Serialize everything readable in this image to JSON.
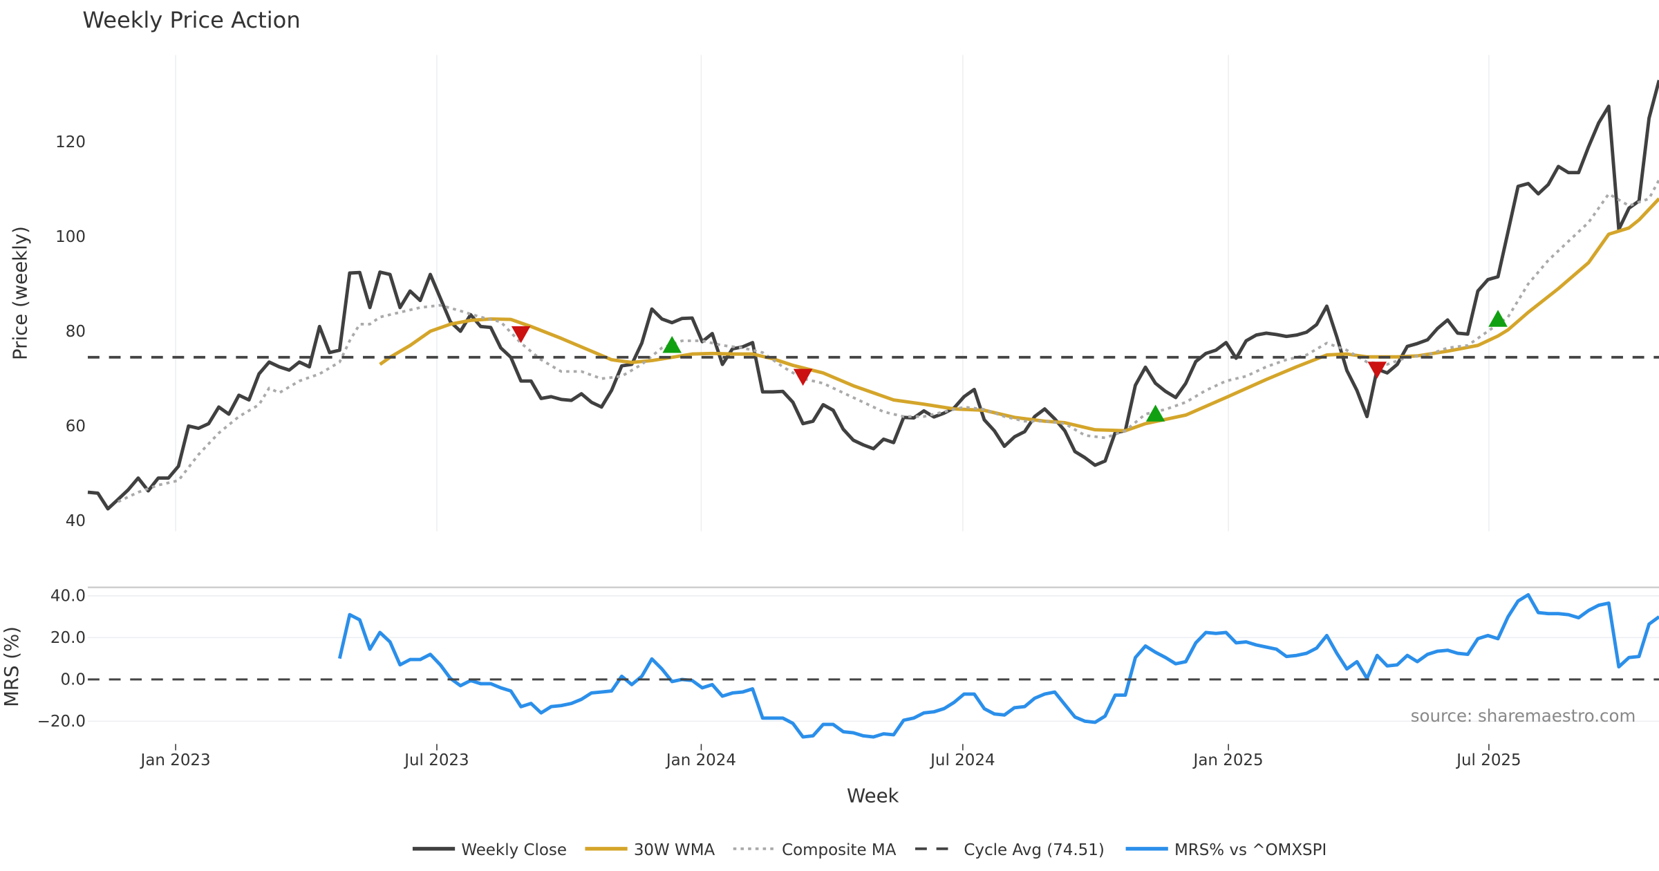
{
  "chart_data": [
    {
      "type": "line",
      "title": "Weekly Price Action",
      "ylabel": "Price (weekly)",
      "ylim": [
        40,
        140
      ],
      "yticks": [
        40,
        60,
        80,
        100,
        120
      ],
      "grid": "vertical",
      "x_unit": "week index (0 = early Nov 2022)",
      "series": [
        {
          "name": "Weekly Close",
          "color": "#404040",
          "style": "solid",
          "values": [
            46,
            45.8,
            42.5,
            44.5,
            46.5,
            49,
            46.3,
            49,
            49,
            51.5,
            60,
            59.5,
            60.5,
            64,
            62.5,
            66.5,
            65.5,
            71,
            73.5,
            72.5,
            71.8,
            73.5,
            72.5,
            81,
            75.5,
            76,
            92.3,
            92.4,
            85,
            92.5,
            92,
            85,
            88.5,
            86.5,
            92,
            87,
            82,
            80,
            83.5,
            81,
            80.8,
            76.5,
            74.5,
            69.5,
            69.5,
            65.8,
            66.2,
            65.6,
            65.4,
            66.8,
            65,
            64,
            67.5,
            72.7,
            73,
            77.5,
            84.7,
            82.6,
            81.8,
            82.7,
            82.8,
            77.8,
            79.5,
            73,
            76.3,
            76.7,
            77.6,
            67.2,
            67.2,
            67.3,
            65,
            60.5,
            61,
            64.5,
            63.3,
            59.3,
            57,
            56,
            55.2,
            57.2,
            56.5,
            61.8,
            61.7,
            63.2,
            61.9,
            62.7,
            63.8,
            66.2,
            67.7,
            61.3,
            59,
            55.7,
            57.7,
            58.8,
            62,
            63.6,
            61.5,
            59,
            54.6,
            53.3,
            51.7,
            52.6,
            58.6,
            59,
            68.6,
            72.4,
            69,
            67.3,
            66,
            69,
            73.6,
            75.3,
            76,
            77.6,
            74.3,
            78,
            79.2,
            79.6,
            79.3,
            78.9,
            79.2,
            79.8,
            81.4,
            85.3,
            78.8,
            71.7,
            67.5,
            62,
            72,
            71.2,
            73,
            76.8,
            77.4,
            78.2,
            80.6,
            82.4,
            79.6,
            79.4,
            88.5,
            90.9,
            91.5,
            101,
            110.6,
            111.2,
            109,
            111,
            114.8,
            113.5,
            113.5,
            119,
            124,
            127.5,
            101.5,
            106,
            107.5,
            125,
            133
          ]
        },
        {
          "name": "30W WMA",
          "color": "#D4A52A",
          "style": "solid",
          "points": [
            [
              29,
              73
            ],
            [
              30,
              74.5
            ],
            [
              32,
              77
            ],
            [
              34,
              80
            ],
            [
              36,
              81.5
            ],
            [
              38,
              82.3
            ],
            [
              40,
              82.6
            ],
            [
              42,
              82.5
            ],
            [
              44,
              81
            ],
            [
              47,
              78.5
            ],
            [
              50,
              75.8
            ],
            [
              52,
              74
            ],
            [
              54,
              73.4
            ],
            [
              56,
              73.8
            ],
            [
              58,
              74.5
            ],
            [
              60,
              75.2
            ],
            [
              62,
              75.3
            ],
            [
              64,
              75.2
            ],
            [
              66,
              75.2
            ],
            [
              68,
              74.2
            ],
            [
              70,
              72.8
            ],
            [
              73,
              71.2
            ],
            [
              76,
              68.5
            ],
            [
              80,
              65.5
            ],
            [
              83,
              64.6
            ],
            [
              86,
              63.6
            ],
            [
              89,
              63.3
            ],
            [
              92,
              61.8
            ],
            [
              95,
              61
            ],
            [
              97,
              60.7
            ],
            [
              100,
              59.2
            ],
            [
              103,
              59
            ],
            [
              105,
              60.5
            ],
            [
              109,
              62.3
            ],
            [
              113,
              66
            ],
            [
              117,
              69.8
            ],
            [
              120,
              72.5
            ],
            [
              123,
              75
            ],
            [
              125,
              75.2
            ],
            [
              127,
              74.6
            ],
            [
              130,
              74.6
            ],
            [
              132,
              74.8
            ],
            [
              135,
              75.8
            ],
            [
              138,
              77
            ],
            [
              140,
              79
            ],
            [
              141,
              80.3
            ],
            [
              143,
              84
            ],
            [
              146,
              89
            ],
            [
              149,
              94.5
            ],
            [
              151,
              100.5
            ],
            [
              153,
              101.8
            ],
            [
              154,
              103.5
            ],
            [
              156,
              108
            ]
          ]
        },
        {
          "name": "Composite MA",
          "color": "#AAAAAA",
          "style": "dotted",
          "points": [
            [
              3,
              44
            ],
            [
              5,
              46
            ],
            [
              7,
              47.5
            ],
            [
              9,
              48.5
            ],
            [
              11,
              54
            ],
            [
              13,
              58.5
            ],
            [
              15,
              62
            ],
            [
              17,
              64.5
            ],
            [
              18,
              68
            ],
            [
              19,
              67
            ],
            [
              21,
              69.5
            ],
            [
              23,
              71
            ],
            [
              25,
              73.5
            ],
            [
              26,
              78
            ],
            [
              27,
              81.5
            ],
            [
              28,
              81.5
            ],
            [
              29,
              83
            ],
            [
              31,
              84
            ],
            [
              33,
              85
            ],
            [
              35,
              85.5
            ],
            [
              37,
              84.3
            ],
            [
              39,
              83
            ],
            [
              41,
              82
            ],
            [
              43,
              77.5
            ],
            [
              45,
              74
            ],
            [
              47,
              71.5
            ],
            [
              49,
              71.5
            ],
            [
              51,
              70
            ],
            [
              53,
              70.5
            ],
            [
              55,
              73
            ],
            [
              57,
              76.5
            ],
            [
              59,
              78
            ],
            [
              61,
              78
            ],
            [
              63,
              77
            ],
            [
              65,
              76.5
            ],
            [
              67,
              75.5
            ],
            [
              69,
              72.5
            ],
            [
              71,
              70
            ],
            [
              73,
              69
            ],
            [
              75,
              67
            ],
            [
              77,
              65
            ],
            [
              79,
              63
            ],
            [
              81,
              62
            ],
            [
              83,
              62
            ],
            [
              85,
              63
            ],
            [
              87,
              64
            ],
            [
              89,
              63.5
            ],
            [
              91,
              62
            ],
            [
              93,
              61
            ],
            [
              95,
              61
            ],
            [
              97,
              60.5
            ],
            [
              99,
              58
            ],
            [
              101,
              57.5
            ],
            [
              103,
              59
            ],
            [
              105,
              62.5
            ],
            [
              107,
              63.5
            ],
            [
              109,
              65
            ],
            [
              111,
              67.5
            ],
            [
              113,
              69.5
            ],
            [
              115,
              70.5
            ],
            [
              117,
              72.5
            ],
            [
              119,
              74
            ],
            [
              121,
              75
            ],
            [
              123,
              77.5
            ],
            [
              125,
              76
            ],
            [
              127,
              73.5
            ],
            [
              129,
              73
            ],
            [
              131,
              74.5
            ],
            [
              133,
              75
            ],
            [
              135,
              76.5
            ],
            [
              137,
              77
            ],
            [
              139,
              80
            ],
            [
              141,
              83
            ],
            [
              143,
              90
            ],
            [
              145,
              95
            ],
            [
              147,
              99
            ],
            [
              149,
              103
            ],
            [
              151,
              109
            ],
            [
              153,
              106.5
            ],
            [
              155,
              108
            ],
            [
              156,
              112
            ]
          ]
        },
        {
          "name": "Cycle Avg (74.51)",
          "color": "#444444",
          "style": "dashed",
          "value": 74.51
        }
      ],
      "signals": [
        {
          "type": "sell",
          "week": 43,
          "value": 79.5,
          "color": "#CC1111"
        },
        {
          "type": "buy",
          "week": 58,
          "value": 77,
          "color": "#11A011"
        },
        {
          "type": "sell",
          "week": 71,
          "value": 70.5,
          "color": "#CC1111"
        },
        {
          "type": "buy",
          "week": 106,
          "value": 62.5,
          "color": "#11A011"
        },
        {
          "type": "sell",
          "week": 128,
          "value": 72,
          "color": "#CC1111"
        },
        {
          "type": "buy",
          "week": 140,
          "value": 82.5,
          "color": "#11A011"
        }
      ]
    },
    {
      "type": "line",
      "ylabel": "MRS (%)",
      "ylim": [
        -30,
        42
      ],
      "yticks": [
        {
          "v": 40,
          "label": "40.0"
        },
        {
          "v": 20,
          "label": "20.0"
        },
        {
          "v": 0,
          "label": "0.0"
        },
        {
          "v": -20,
          "label": "−20.0"
        }
      ],
      "xlabel": "Week",
      "xticks": [
        {
          "week": 8.72,
          "label": "Jan 2023"
        },
        {
          "week": 34.65,
          "label": "Jul 2023"
        },
        {
          "week": 60.9,
          "label": "Jan 2024"
        },
        {
          "week": 86.87,
          "label": "Jul 2024"
        },
        {
          "week": 113.24,
          "label": "Jan 2025"
        },
        {
          "week": 139.1,
          "label": "Jul 2025"
        }
      ],
      "annotation": "source: sharemaestro.com",
      "series": [
        {
          "name": "MRS% vs ^OMXSPI",
          "color": "#2B8FEA",
          "start_week": 25,
          "values": [
            10,
            31,
            28.5,
            14.5,
            22.5,
            18,
            7,
            9.5,
            9.5,
            12,
            7,
            0.5,
            -3,
            -0.5,
            -2,
            -2,
            -4,
            -5.5,
            -13,
            -11.5,
            -16,
            -13,
            -12.5,
            -11.5,
            -9.5,
            -6.5,
            -6,
            -5.5,
            1.5,
            -2.5,
            1.5,
            9.8,
            5,
            -1,
            0,
            -0.5,
            -4,
            -2.5,
            -8,
            -6.5,
            -6,
            -4.5,
            -18.5,
            -18.5,
            -18.5,
            -21,
            -27.5,
            -27,
            -21.5,
            -21.5,
            -25,
            -25.5,
            -27,
            -27.5,
            -26,
            -26.5,
            -19.5,
            -18.5,
            -16,
            -15.5,
            -14,
            -11,
            -7,
            -7,
            -14,
            -16.5,
            -17,
            -13.5,
            -13,
            -9,
            -7,
            -6,
            -12,
            -18,
            -20,
            -20.5,
            -17.5,
            -7.5,
            -7.5,
            10.5,
            16,
            13,
            10.5,
            7.5,
            8.5,
            17.5,
            22.5,
            22,
            22.5,
            17.5,
            18,
            16.5,
            15.5,
            14.5,
            11,
            11.5,
            12.5,
            15,
            21,
            12.5,
            5,
            8.5,
            0.5,
            11.5,
            6.5,
            7,
            11.5,
            8.5,
            12,
            13.5,
            14,
            12.5,
            12,
            19.5,
            21,
            19.5,
            30,
            37.5,
            40.5,
            32,
            31.5,
            31.5,
            31,
            29.5,
            33,
            35.5,
            36.5,
            6,
            10.5,
            11,
            26.5,
            30
          ]
        },
        {
          "name": "zero",
          "color": "#444444",
          "style": "dashed",
          "value": 0
        }
      ]
    }
  ],
  "legend": {
    "placement": "bottom-center",
    "items": [
      "Weekly Close",
      "30W WMA",
      "Composite MA",
      "Cycle Avg (74.51)",
      "MRS% vs ^OMXSPI"
    ]
  }
}
